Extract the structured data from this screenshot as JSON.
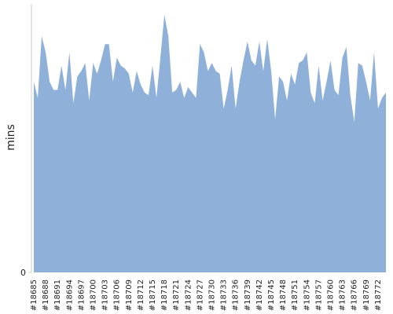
{
  "chart_data": {
    "type": "area",
    "y_label": "mins",
    "color": "#8fb0d9",
    "categories": [
      "#18685",
      null,
      null,
      "#18688",
      null,
      null,
      "#18691",
      null,
      null,
      "#18694",
      null,
      null,
      "#18697",
      null,
      null,
      "#18700",
      null,
      null,
      "#18703",
      null,
      null,
      "#18706",
      null,
      null,
      "#18709",
      null,
      null,
      "#18712",
      null,
      null,
      "#18715",
      null,
      null,
      "#18718",
      null,
      null,
      "#18721",
      null,
      null,
      "#18724",
      null,
      null,
      "#18727",
      null,
      null,
      "#18730",
      null,
      null,
      "#18733",
      null,
      null,
      "#18736",
      null,
      null,
      "#18739",
      null,
      null,
      "#18742",
      null,
      null,
      "#18745",
      null,
      null,
      "#18748",
      null,
      null,
      "#18751",
      null,
      null,
      "#18754",
      null,
      null,
      "#18757",
      null,
      null,
      "#18760",
      null,
      null,
      "#18763",
      null,
      null,
      "#18766",
      null,
      null,
      "#18769",
      null,
      null,
      "#18772",
      null,
      null
    ],
    "values": [
      71,
      65,
      88,
      82,
      71,
      68,
      68,
      77,
      68,
      82,
      63,
      73,
      75,
      78,
      64,
      78,
      74,
      79,
      85,
      85,
      71,
      80,
      77,
      76,
      74,
      67,
      75,
      70,
      67,
      66,
      77,
      65,
      80,
      96,
      88,
      67,
      68,
      71,
      65,
      69,
      67,
      65,
      85,
      82,
      75,
      78,
      75,
      74,
      61,
      68,
      77,
      61,
      71,
      79,
      86,
      79,
      77,
      86,
      75,
      87,
      75,
      57,
      73,
      71,
      64,
      74,
      70,
      78,
      79,
      82,
      67,
      63,
      77,
      64,
      71,
      79,
      68,
      66,
      80,
      84,
      66,
      56,
      78,
      77,
      71,
      64,
      82,
      61,
      65,
      67
    ],
    "ylim": [
      0,
      100
    ],
    "yticks": [
      0
    ]
  }
}
